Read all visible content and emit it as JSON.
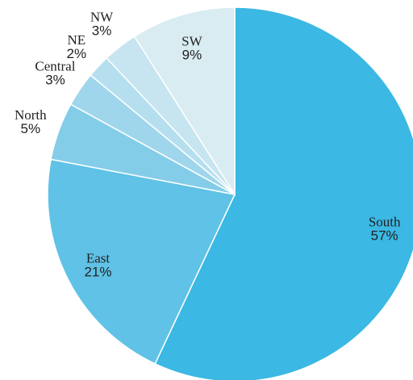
{
  "chart_data": {
    "type": "pie",
    "categories": [
      "South",
      "East",
      "North",
      "Central",
      "NE",
      "NW",
      "SW"
    ],
    "values": [
      57,
      21,
      5,
      3,
      2,
      3,
      9
    ],
    "value_labels": [
      "57%",
      "21%",
      "5%",
      "3%",
      "2%",
      "3%",
      "9%"
    ],
    "colors": [
      "#3bb8e3",
      "#5fc2e6",
      "#84cde9",
      "#9fd6ec",
      "#b5dfee",
      "#c6e5f0",
      "#d9ecf1"
    ]
  }
}
